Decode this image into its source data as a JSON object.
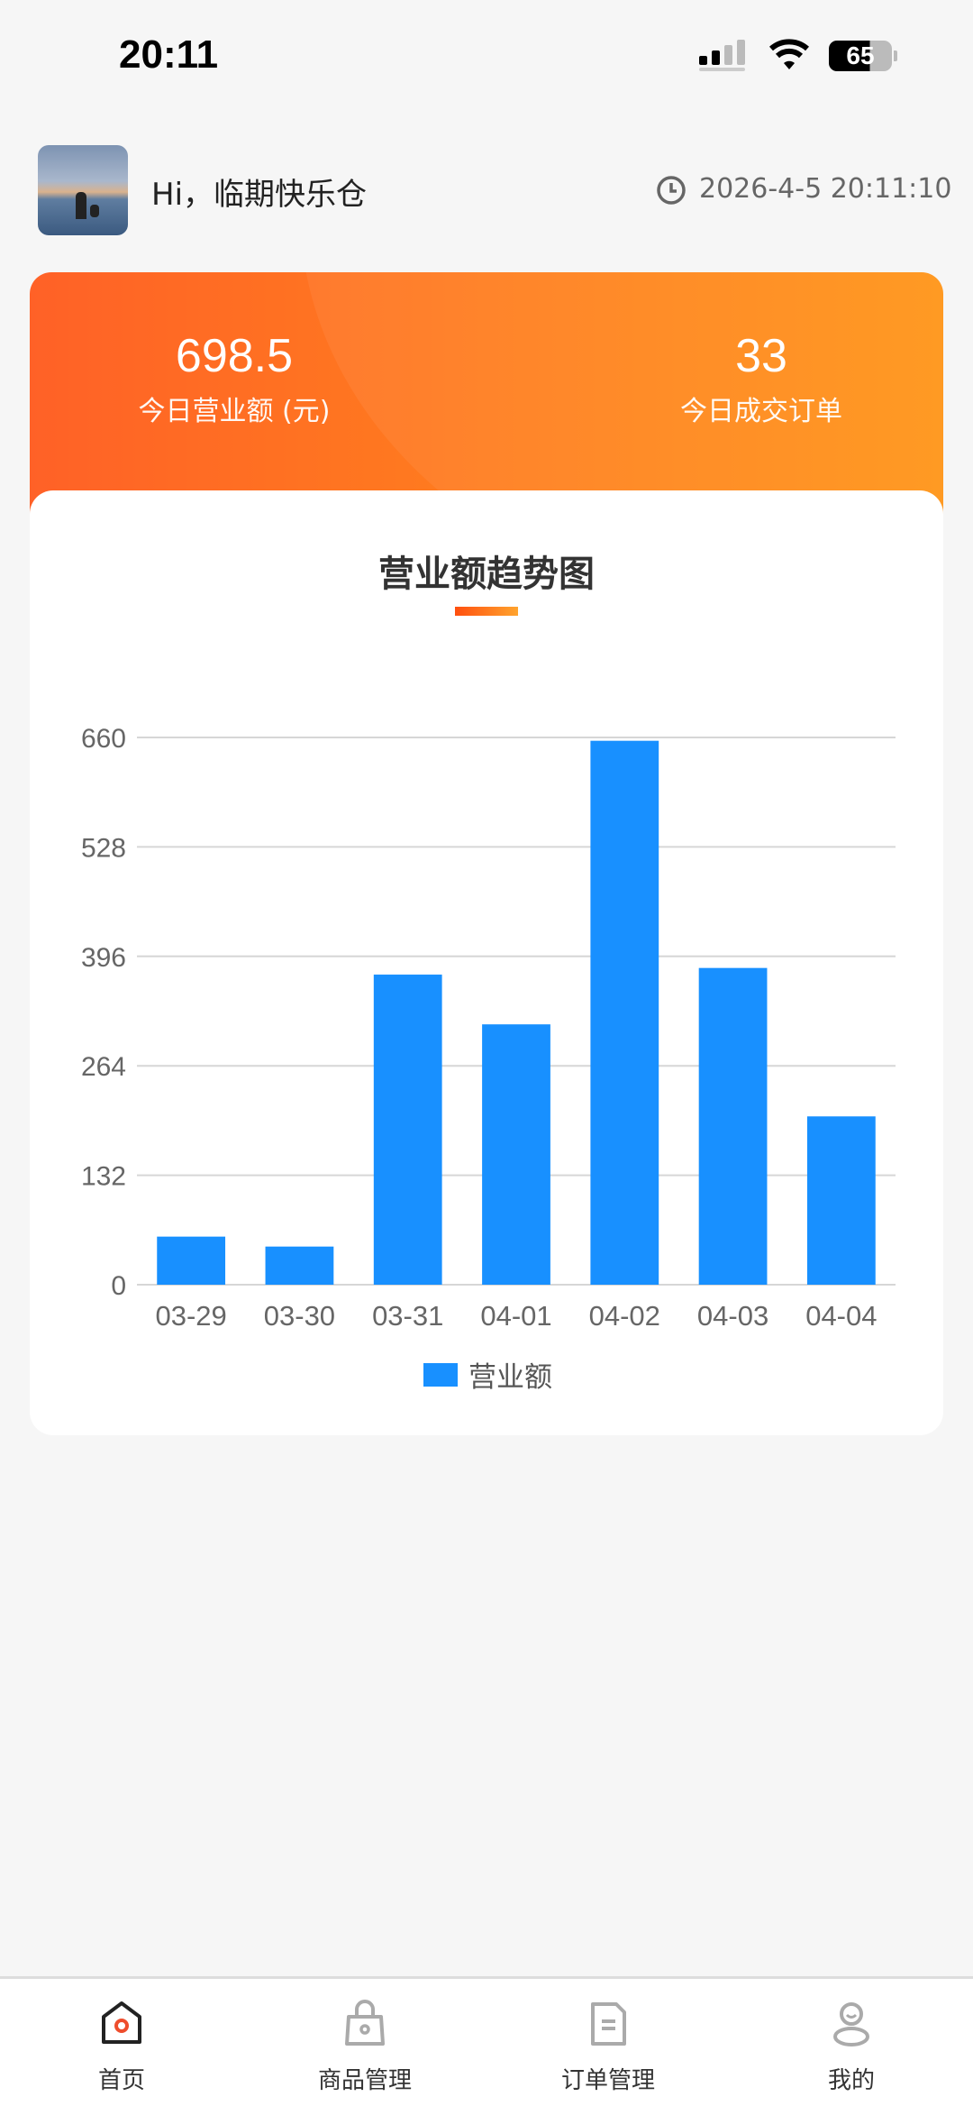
{
  "status_bar": {
    "time": "20:11",
    "battery": "65"
  },
  "header": {
    "greeting": "Hi，临期快乐仓",
    "datetime": "2026-4-5 20:11:10"
  },
  "stats": [
    {
      "value": "698.5",
      "label": "今日营业额 (元)"
    },
    {
      "value": "33",
      "label": "今日成交订单"
    }
  ],
  "colors": {
    "accent": "#ff6a22",
    "bar": "#1890ff",
    "active_icon": "#ee4d2d"
  },
  "chart_data": {
    "type": "bar",
    "title": "营业额趋势图",
    "categories": [
      "03-29",
      "03-30",
      "03-31",
      "04-01",
      "04-02",
      "04-03",
      "04-04"
    ],
    "series": [
      {
        "name": "营业额",
        "values": [
          58,
          46,
          374,
          314,
          656,
          382,
          203
        ]
      }
    ],
    "yticks": [
      0,
      132,
      264,
      396,
      528,
      660
    ],
    "ylim": [
      0,
      660
    ],
    "grid": true,
    "legend": "bottom"
  },
  "nav": [
    {
      "label": "首页",
      "icon": "home-icon",
      "active": true
    },
    {
      "label": "商品管理",
      "icon": "bag-icon"
    },
    {
      "label": "订单管理",
      "icon": "document-icon"
    },
    {
      "label": "我的",
      "icon": "user-icon"
    }
  ]
}
